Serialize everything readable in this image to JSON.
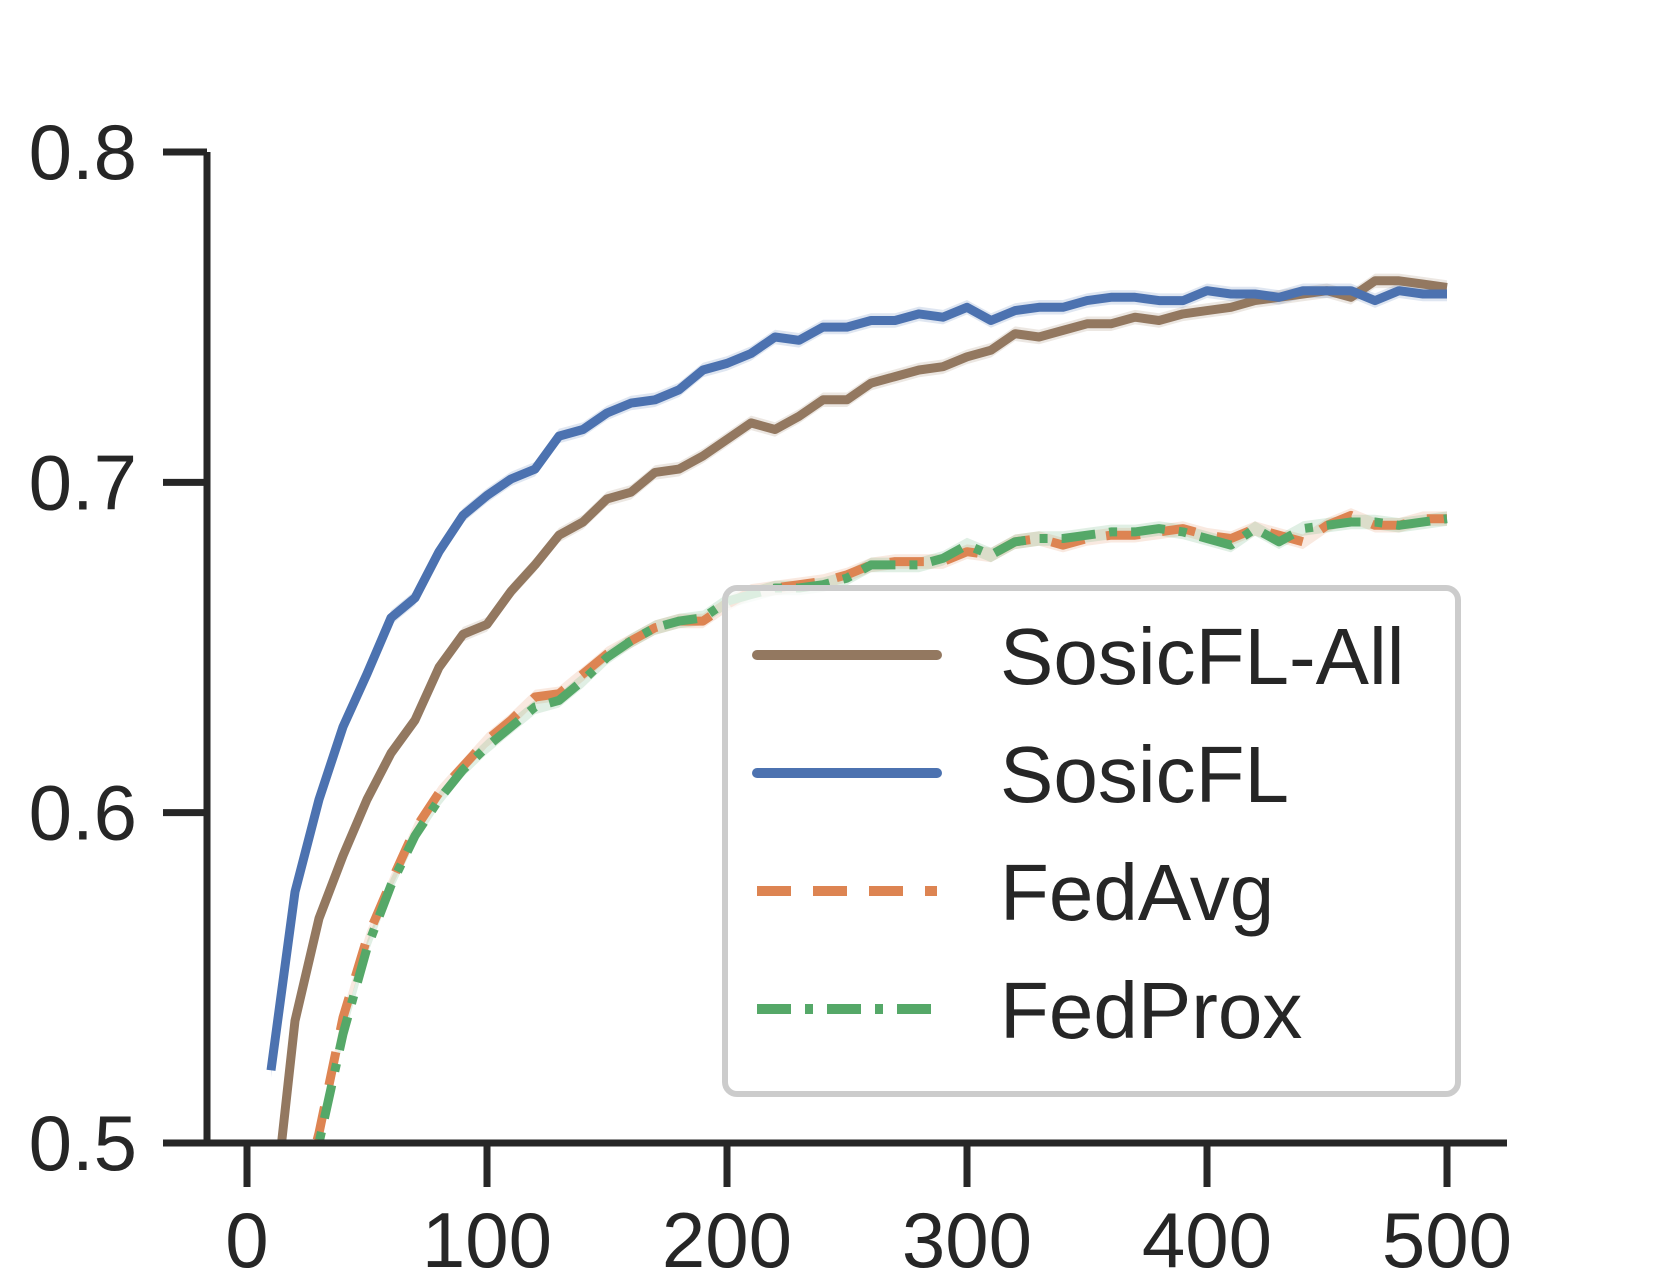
{
  "chart_data": {
    "type": "line",
    "title": "",
    "xlabel": "",
    "ylabel": "",
    "xlim": [
      -10,
      530
    ],
    "ylim": [
      0.5,
      0.8
    ],
    "x_ticks": [
      0,
      100,
      200,
      300,
      400,
      500
    ],
    "y_ticks": [
      0.5,
      0.6,
      0.7,
      0.8
    ],
    "x_tick_labels": [
      "0",
      "100",
      "200",
      "300",
      "400",
      "500"
    ],
    "y_tick_labels": [
      "0.5",
      "0.6",
      "0.7",
      "0.8"
    ],
    "grid": false,
    "legend_position": "center-right",
    "x": [
      10,
      20,
      30,
      40,
      50,
      60,
      70,
      80,
      90,
      100,
      110,
      120,
      130,
      140,
      150,
      160,
      170,
      180,
      190,
      200,
      210,
      220,
      230,
      240,
      250,
      260,
      270,
      280,
      290,
      300,
      310,
      320,
      330,
      340,
      350,
      360,
      370,
      380,
      390,
      400,
      410,
      420,
      430,
      440,
      450,
      460,
      470,
      480,
      490,
      500
    ],
    "series": [
      {
        "name": "SosicFL-All",
        "color": "#937860",
        "style": "solid",
        "values": [
          0.471,
          0.537,
          0.568,
          0.587,
          0.604,
          0.618,
          0.628,
          0.644,
          0.654,
          0.657,
          0.667,
          0.675,
          0.684,
          0.688,
          0.695,
          0.697,
          0.703,
          0.704,
          0.708,
          0.713,
          0.718,
          0.716,
          0.72,
          0.725,
          0.725,
          0.73,
          0.732,
          0.734,
          0.735,
          0.738,
          0.74,
          0.745,
          0.744,
          0.746,
          0.748,
          0.748,
          0.75,
          0.749,
          0.751,
          0.752,
          0.753,
          0.755,
          0.756,
          0.757,
          0.758,
          0.756,
          0.761,
          0.761,
          0.76,
          0.759
        ]
      },
      {
        "name": "SosicFL",
        "color": "#4c72b0",
        "style": "solid",
        "values": [
          0.522,
          0.576,
          0.604,
          0.626,
          0.642,
          0.659,
          0.665,
          0.679,
          0.69,
          0.696,
          0.701,
          0.704,
          0.714,
          0.716,
          0.721,
          0.724,
          0.725,
          0.728,
          0.734,
          0.736,
          0.739,
          0.744,
          0.743,
          0.747,
          0.747,
          0.749,
          0.749,
          0.751,
          0.75,
          0.753,
          0.749,
          0.752,
          0.753,
          0.753,
          0.755,
          0.756,
          0.756,
          0.755,
          0.755,
          0.758,
          0.757,
          0.757,
          0.756,
          0.758,
          0.758,
          0.758,
          0.755,
          0.758,
          0.757,
          0.757
        ]
      },
      {
        "name": "FedAvg",
        "color": "#dd8452",
        "style": "dashed",
        "values": [
          0.452,
          0.476,
          0.503,
          0.538,
          0.562,
          0.579,
          0.595,
          0.606,
          0.614,
          0.622,
          0.628,
          0.635,
          0.636,
          0.642,
          0.648,
          0.652,
          0.656,
          0.658,
          0.658,
          0.663,
          0.667,
          0.668,
          0.669,
          0.67,
          0.672,
          0.675,
          0.676,
          0.676,
          0.676,
          0.679,
          0.678,
          0.682,
          0.683,
          0.681,
          0.683,
          0.684,
          0.684,
          0.685,
          0.686,
          0.684,
          0.683,
          0.686,
          0.684,
          0.682,
          0.687,
          0.69,
          0.687,
          0.687,
          0.689,
          0.689
        ]
      },
      {
        "name": "FedProx",
        "color": "#55a868",
        "style": "dashdot",
        "values": [
          0.446,
          0.472,
          0.5,
          0.533,
          0.559,
          0.578,
          0.593,
          0.604,
          0.613,
          0.62,
          0.626,
          0.632,
          0.634,
          0.64,
          0.647,
          0.652,
          0.656,
          0.658,
          0.659,
          0.664,
          0.666,
          0.668,
          0.668,
          0.669,
          0.671,
          0.675,
          0.675,
          0.675,
          0.677,
          0.681,
          0.678,
          0.682,
          0.683,
          0.683,
          0.684,
          0.685,
          0.685,
          0.686,
          0.685,
          0.683,
          0.681,
          0.686,
          0.682,
          0.686,
          0.687,
          0.688,
          0.688,
          0.687,
          0.688,
          0.689
        ]
      }
    ]
  }
}
